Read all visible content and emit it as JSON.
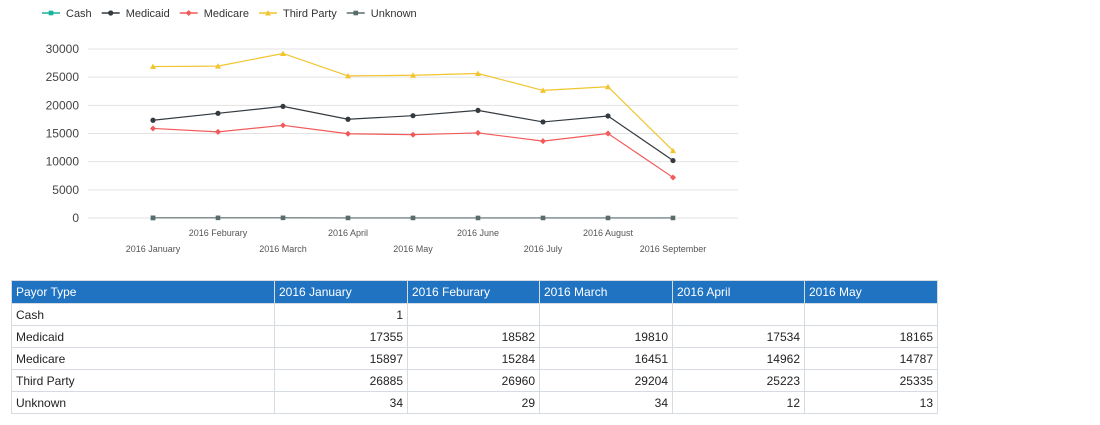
{
  "chart_data": {
    "type": "line",
    "categories": [
      "2016 January",
      "2016 Feburary",
      "2016 March",
      "2016 April",
      "2016 May",
      "2016 June",
      "2016 July",
      "2016 August",
      "2016 September"
    ],
    "series": [
      {
        "name": "Cash",
        "color": "#19b29a",
        "marker": "square",
        "values": [
          1,
          null,
          null,
          null,
          null,
          null,
          null,
          null,
          null
        ]
      },
      {
        "name": "Medicaid",
        "color": "#333a40",
        "marker": "circle",
        "values": [
          17355,
          18582,
          19810,
          17534,
          18165,
          19100,
          17050,
          18100,
          10200
        ]
      },
      {
        "name": "Medicare",
        "color": "#f25a5a",
        "marker": "diamond",
        "values": [
          15897,
          15284,
          16451,
          14962,
          14787,
          15100,
          13650,
          15000,
          7200
        ]
      },
      {
        "name": "Third Party",
        "color": "#f2c42d",
        "marker": "triangle",
        "values": [
          26885,
          26960,
          29204,
          25223,
          25335,
          25650,
          22650,
          23300,
          11950
        ]
      },
      {
        "name": "Unknown",
        "color": "#596b6b",
        "marker": "square",
        "values": [
          34,
          29,
          34,
          12,
          13,
          10,
          10,
          10,
          10
        ]
      }
    ],
    "yticks": [
      0,
      5000,
      10000,
      15000,
      20000,
      25000,
      30000
    ],
    "ylim": [
      0,
      30000
    ],
    "grid": true,
    "legend": "top-left"
  },
  "table": {
    "headers": [
      "Payor Type",
      "2016 January",
      "2016 Feburary",
      "2016 March",
      "2016 April",
      "2016 May"
    ],
    "rows": [
      {
        "label": "Cash",
        "values": [
          "1",
          "",
          "",
          "",
          ""
        ]
      },
      {
        "label": "Medicaid",
        "values": [
          "17355",
          "18582",
          "19810",
          "17534",
          "18165"
        ]
      },
      {
        "label": "Medicare",
        "values": [
          "15897",
          "15284",
          "16451",
          "14962",
          "14787"
        ]
      },
      {
        "label": "Third Party",
        "values": [
          "26885",
          "26960",
          "29204",
          "25223",
          "25335"
        ]
      },
      {
        "label": "Unknown",
        "values": [
          "34",
          "29",
          "34",
          "12",
          "13"
        ]
      }
    ]
  }
}
